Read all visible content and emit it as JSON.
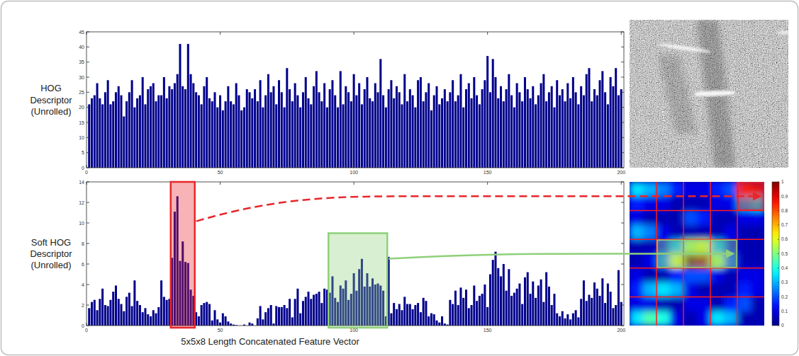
{
  "chart_data": [
    {
      "type": "bar",
      "ylabel": "HOG Descriptor (Unrolled)",
      "x": [
        1,
        2,
        3,
        4,
        5,
        6,
        7,
        8,
        9,
        10,
        11,
        12,
        13,
        14,
        15,
        16,
        17,
        18,
        19,
        20,
        21,
        22,
        23,
        24,
        25,
        26,
        27,
        28,
        29,
        30,
        31,
        32,
        33,
        34,
        35,
        36,
        37,
        38,
        39,
        40,
        41,
        42,
        43,
        44,
        45,
        46,
        47,
        48,
        49,
        50,
        51,
        52,
        53,
        54,
        55,
        56,
        57,
        58,
        59,
        60,
        61,
        62,
        63,
        64,
        65,
        66,
        67,
        68,
        69,
        70,
        71,
        72,
        73,
        74,
        75,
        76,
        77,
        78,
        79,
        80,
        81,
        82,
        83,
        84,
        85,
        86,
        87,
        88,
        89,
        90,
        91,
        92,
        93,
        94,
        95,
        96,
        97,
        98,
        99,
        100,
        101,
        102,
        103,
        104,
        105,
        106,
        107,
        108,
        109,
        110,
        111,
        112,
        113,
        114,
        115,
        116,
        117,
        118,
        119,
        120,
        121,
        122,
        123,
        124,
        125,
        126,
        127,
        128,
        129,
        130,
        131,
        132,
        133,
        134,
        135,
        136,
        137,
        138,
        139,
        140,
        141,
        142,
        143,
        144,
        145,
        146,
        147,
        148,
        149,
        150,
        151,
        152,
        153,
        154,
        155,
        156,
        157,
        158,
        159,
        160,
        161,
        162,
        163,
        164,
        165,
        166,
        167,
        168,
        169,
        170,
        171,
        172,
        173,
        174,
        175,
        176,
        177,
        178,
        179,
        180,
        181,
        182,
        183,
        184,
        185,
        186,
        187,
        188,
        189,
        190,
        191,
        192,
        193,
        194,
        195,
        196,
        197,
        198,
        199,
        200
      ],
      "values": [
        21,
        23,
        24,
        28,
        23,
        21,
        25,
        29,
        21,
        22,
        25,
        27,
        24,
        17,
        22,
        25,
        29,
        20,
        23,
        24,
        30,
        21,
        26,
        27,
        28,
        22,
        24,
        24,
        30,
        23,
        27,
        26,
        28,
        31,
        41,
        27,
        26,
        41,
        31,
        28,
        25,
        24,
        21,
        27,
        30,
        23,
        22,
        25,
        20,
        24,
        19,
        22,
        27,
        22,
        21,
        28,
        24,
        19,
        20,
        26,
        25,
        23,
        26,
        22,
        29,
        20,
        24,
        31,
        25,
        27,
        21,
        29,
        25,
        20,
        33,
        26,
        22,
        28,
        24,
        20,
        25,
        30,
        23,
        21,
        27,
        32,
        25,
        22,
        28,
        20,
        26,
        29,
        24,
        20,
        32,
        21,
        27,
        25,
        22,
        31,
        24,
        28,
        21,
        26,
        30,
        23,
        22,
        28,
        25,
        36,
        24,
        20,
        26,
        29,
        23,
        27,
        25,
        21,
        31,
        22,
        26,
        24,
        20,
        29,
        30,
        22,
        25,
        28,
        19,
        24,
        27,
        21,
        23,
        26,
        22,
        25,
        29,
        22,
        24,
        31,
        20,
        26,
        28,
        23,
        30,
        24,
        21,
        26,
        29,
        37,
        25,
        36,
        30,
        23,
        27,
        22,
        26,
        31,
        24,
        20,
        28,
        25,
        22,
        30,
        26,
        23,
        27,
        21,
        24,
        28,
        31,
        22,
        25,
        27,
        20,
        29,
        24,
        26,
        22,
        28,
        23,
        30,
        25,
        21,
        27,
        24,
        31,
        33,
        22,
        26,
        24,
        29,
        32,
        25,
        21,
        30,
        27,
        33,
        24,
        26
      ],
      "color": "#00008b",
      "xlim": [
        0,
        201
      ],
      "xticks": [
        0,
        50,
        100,
        150,
        200
      ],
      "ylim": [
        0,
        45
      ],
      "yticks": [
        0,
        5,
        10,
        15,
        20,
        25,
        30,
        35,
        40,
        45
      ]
    },
    {
      "type": "bar",
      "ylabel": "Soft HOG Descriptor (Unrolled)",
      "xlabel": "5x5x8 Length Concatenated Feature Vector",
      "x": [
        1,
        2,
        3,
        4,
        5,
        6,
        7,
        8,
        9,
        10,
        11,
        12,
        13,
        14,
        15,
        16,
        17,
        18,
        19,
        20,
        21,
        22,
        23,
        24,
        25,
        26,
        27,
        28,
        29,
        30,
        31,
        32,
        33,
        34,
        35,
        36,
        37,
        38,
        39,
        40,
        41,
        42,
        43,
        44,
        45,
        46,
        47,
        48,
        49,
        50,
        51,
        52,
        53,
        54,
        55,
        56,
        57,
        58,
        59,
        60,
        61,
        62,
        63,
        64,
        65,
        66,
        67,
        68,
        69,
        70,
        71,
        72,
        73,
        74,
        75,
        76,
        77,
        78,
        79,
        80,
        81,
        82,
        83,
        84,
        85,
        86,
        87,
        88,
        89,
        90,
        91,
        92,
        93,
        94,
        95,
        96,
        97,
        98,
        99,
        100,
        101,
        102,
        103,
        104,
        105,
        106,
        107,
        108,
        109,
        110,
        111,
        112,
        113,
        114,
        115,
        116,
        117,
        118,
        119,
        120,
        121,
        122,
        123,
        124,
        125,
        126,
        127,
        128,
        129,
        130,
        131,
        132,
        133,
        134,
        135,
        136,
        137,
        138,
        139,
        140,
        141,
        142,
        143,
        144,
        145,
        146,
        147,
        148,
        149,
        150,
        151,
        152,
        153,
        154,
        155,
        156,
        157,
        158,
        159,
        160,
        161,
        162,
        163,
        164,
        165,
        166,
        167,
        168,
        169,
        170,
        171,
        172,
        173,
        174,
        175,
        176,
        177,
        178,
        179,
        180,
        181,
        182,
        183,
        184,
        185,
        186,
        187,
        188,
        189,
        190,
        191,
        192,
        193,
        194,
        195,
        196,
        197,
        198,
        199,
        200
      ],
      "values": [
        1.7,
        2.3,
        2.5,
        1.5,
        2.6,
        3.6,
        2.0,
        1.9,
        2.5,
        3.3,
        3.9,
        2.6,
        2.1,
        1.4,
        2.8,
        3.2,
        1.9,
        4.4,
        2.4,
        2.0,
        1.3,
        1.7,
        1.1,
        0.9,
        1.5,
        1.2,
        1.8,
        4.4,
        2.8,
        2.5,
        2.6,
        6.6,
        11.1,
        12.6,
        6.3,
        8.2,
        6.2,
        6.1,
        3.5,
        2.9,
        1.3,
        0.9,
        2.0,
        2.2,
        2.3,
        2.1,
        0.5,
        1.5,
        0.6,
        0.3,
        1.2,
        0.9,
        0.4,
        0.2,
        0.1,
        0.05,
        0,
        0,
        0.1,
        0,
        0.3,
        0.2,
        0,
        0.7,
        1.9,
        0.6,
        1.3,
        1.7,
        2.0,
        0.2,
        1.9,
        1.8,
        1.8,
        2.0,
        1.7,
        2.6,
        0.8,
        2.6,
        3.6,
        1.2,
        2.4,
        2.8,
        3.3,
        2.6,
        3.0,
        3.1,
        3.3,
        2.2,
        3.6,
        3.5,
        3.2,
        4.8,
        2.7,
        2.3,
        3.9,
        3.6,
        4.4,
        2.5,
        3.1,
        5.1,
        3.4,
        5.5,
        6.5,
        3.8,
        5.1,
        3.8,
        4.6,
        4.0,
        4.1,
        3.9,
        3.4,
        0.9,
        6.7,
        1.2,
        2.2,
        1.6,
        2.1,
        1.5,
        2.8,
        2.1,
        2.1,
        1.6,
        2.0,
        2.2,
        1.3,
        2.7,
        2.4,
        0.9,
        1.2,
        1.1,
        0.5,
        0.3,
        0.9,
        0.2,
        0.1,
        2.5,
        2.1,
        3.4,
        2.0,
        3.7,
        2.7,
        3.5,
        1.7,
        2.0,
        3.9,
        2.4,
        2.9,
        3.1,
        4.0,
        1.8,
        5.0,
        6.4,
        7.2,
        5.6,
        4.8,
        6.0,
        3.4,
        5.5,
        2.9,
        3.2,
        3.6,
        4.1,
        2.1,
        4.7,
        5.2,
        3.1,
        4.3,
        2.7,
        3.9,
        4.5,
        2.3,
        5.2,
        3.8,
        2.0,
        3.1,
        1.2,
        0.9,
        1.4,
        0.7,
        1.1,
        0.6,
        1.2,
        1.5,
        0.8,
        2.6,
        4.4,
        2.4,
        3.0,
        2.7,
        4.2,
        3.6,
        2.9,
        4.6,
        2.2,
        4.1,
        3.3,
        1.7,
        2.0,
        5.4,
        2.3
      ],
      "color": "#00008b",
      "xlim": [
        0,
        201
      ],
      "xticks": [
        0,
        50,
        100,
        150,
        200
      ],
      "ylim": [
        0,
        14
      ],
      "yticks": [
        0,
        2,
        4,
        6,
        8,
        10,
        12,
        14
      ],
      "highlights": [
        {
          "x": [
            31.5,
            40.5
          ],
          "color": "#e8262b",
          "line_style": "dashed",
          "cell_rows": [
            0,
            0
          ],
          "cell_cols": [
            4,
            4
          ]
        },
        {
          "x": [
            90.5,
            112.5
          ],
          "color": "#8fd07a",
          "line_style": "solid",
          "cell_rows": [
            2,
            2
          ],
          "cell_cols": [
            1,
            3
          ]
        }
      ]
    },
    {
      "type": "heatmap",
      "grid": true,
      "cells": [
        [
          0.35,
          0.3,
          0.25,
          0.15,
          0.1,
          0.1,
          0.15,
          0.2,
          0.85,
          0.9
        ],
        [
          0.15,
          0.1,
          0.1,
          0.05,
          0.05,
          0.05,
          0.1,
          0.1,
          0.3,
          0.35
        ],
        [
          0.1,
          0.05,
          0.05,
          0.05,
          0.2,
          0.15,
          0.05,
          0.05,
          0.1,
          0.1
        ],
        [
          0.3,
          0.25,
          0.1,
          0.05,
          0.05,
          0.05,
          0.05,
          0.1,
          0.05,
          0.05
        ],
        [
          0.05,
          0.05,
          0.1,
          0.3,
          0.55,
          0.6,
          0.3,
          0.1,
          0.05,
          0.05
        ],
        [
          0.05,
          0.1,
          0.25,
          0.6,
          1,
          0.95,
          0.55,
          0.2,
          0.05,
          0.05
        ],
        [
          0.1,
          0.05,
          0.05,
          0.15,
          0.2,
          0.2,
          0.1,
          0.05,
          0.1,
          0.1
        ],
        [
          0.15,
          0.3,
          0.35,
          0.3,
          0.1,
          0.05,
          0.05,
          0.05,
          0.15,
          0.1
        ],
        [
          0.1,
          0.1,
          0.05,
          0.05,
          0.1,
          0.1,
          0.05,
          0.15,
          0.2,
          0.05
        ],
        [
          0.35,
          0.45,
          0.4,
          0.1,
          0.05,
          0.1,
          0.35,
          0.3,
          0.05,
          0.05
        ]
      ],
      "colorbar": {
        "range": [
          0,
          1
        ],
        "ticks": [
          0,
          0.1,
          0.2,
          0.3,
          0.4,
          0.5,
          0.6,
          0.7,
          0.8,
          0.9,
          1
        ]
      }
    }
  ]
}
